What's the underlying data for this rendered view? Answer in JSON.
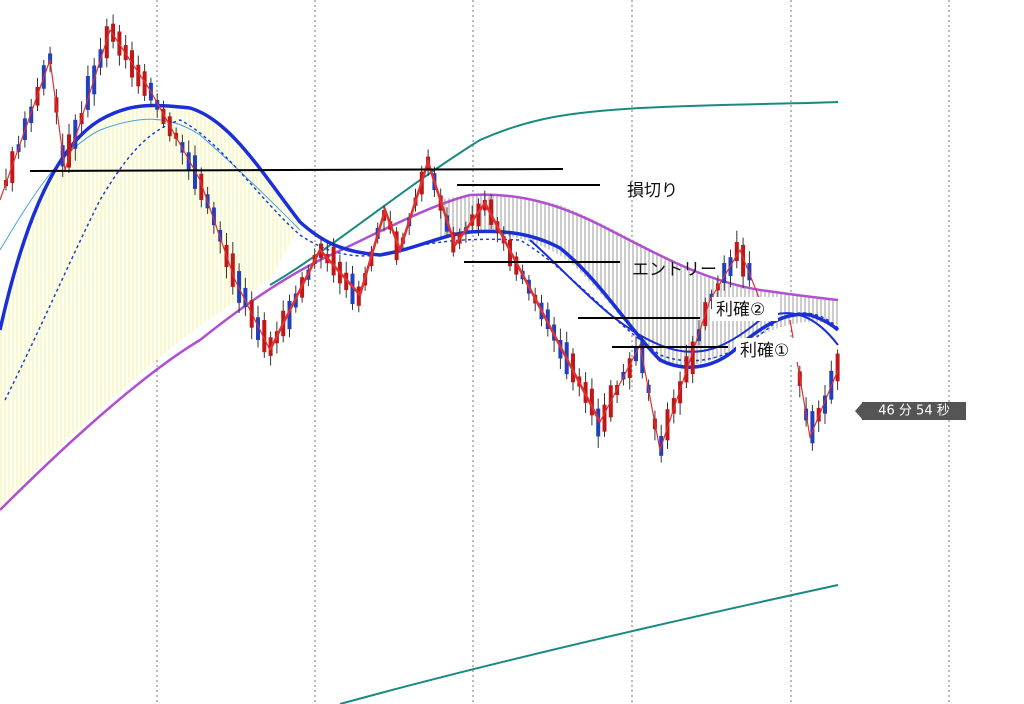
{
  "annotations": {
    "stop_loss": "損切り",
    "entry": "エントリー",
    "take_profit_2": "利確②",
    "take_profit_1": "利確①"
  },
  "timer": "46 分 54 秒"
}
